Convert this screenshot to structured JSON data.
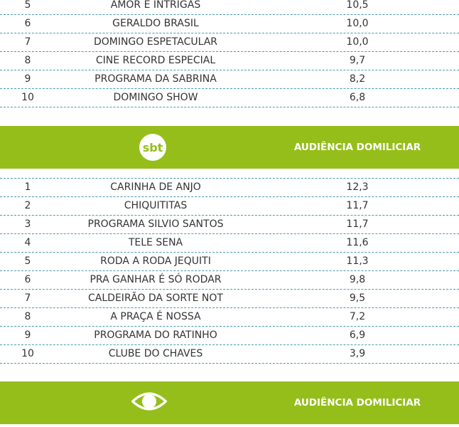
{
  "table1": {
    "rows": [
      {
        "rank": "5",
        "program": "AMOR E INTRIGAS",
        "value": "10,5"
      },
      {
        "rank": "6",
        "program": "GERALDO BRASIL",
        "value": "10,0"
      },
      {
        "rank": "7",
        "program": "DOMINGO ESPETACULAR",
        "value": "10,0"
      },
      {
        "rank": "8",
        "program": "CINE RECORD ESPECIAL",
        "value": "9,7"
      },
      {
        "rank": "9",
        "program": "PROGRAMA DA SABRINA",
        "value": "8,2"
      },
      {
        "rank": "10",
        "program": "DOMINGO SHOW",
        "value": "6,8"
      }
    ]
  },
  "band_sbt": {
    "logo_text": "sbt",
    "logo_icon": "sbt-logo-icon",
    "header": "AUDIÊNCIA DOMILICIAR"
  },
  "table2": {
    "rows": [
      {
        "rank": "1",
        "program": "CARINHA DE ANJO",
        "value": "12,3"
      },
      {
        "rank": "2",
        "program": "CHIQUITITAS",
        "value": "11,7"
      },
      {
        "rank": "3",
        "program": "PROGRAMA SILVIO SANTOS",
        "value": "11,7"
      },
      {
        "rank": "4",
        "program": "TELE SENA",
        "value": "11,6"
      },
      {
        "rank": "5",
        "program": "RODA A RODA JEQUITI",
        "value": "11,3"
      },
      {
        "rank": "6",
        "program": "PRA GANHAR É SÓ RODAR",
        "value": "9,8"
      },
      {
        "rank": "7",
        "program": "CALDEIRÃO DA SORTE NOT",
        "value": "9,5"
      },
      {
        "rank": "8",
        "program": "A PRAÇA É NOSSA",
        "value": "7,2"
      },
      {
        "rank": "9",
        "program": "PROGRAMA DO RATINHO",
        "value": "6,9"
      },
      {
        "rank": "10",
        "program": "CLUBE DO CHAVES",
        "value": "3,9"
      }
    ]
  },
  "band_band": {
    "logo_icon": "band-eye-logo-icon",
    "header": "AUDIÊNCIA DOMILICIAR"
  },
  "colors": {
    "band_green": "#95be1a",
    "rule": "#4a9ab0",
    "text": "#333333"
  }
}
